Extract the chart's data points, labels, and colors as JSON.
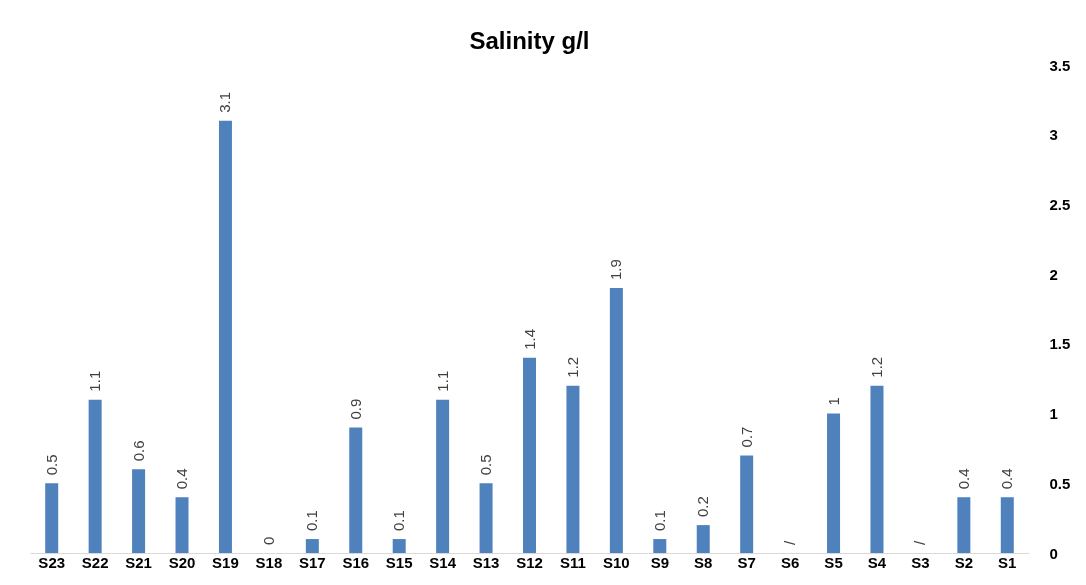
{
  "chart_data": {
    "type": "bar",
    "title": "Salinity g/l",
    "categories": [
      "S23",
      "S22",
      "S21",
      "S20",
      "S19",
      "S18",
      "S17",
      "S16",
      "S15",
      "S14",
      "S13",
      "S12",
      "S11",
      "S10",
      "S9",
      "S8",
      "S7",
      "S6",
      "S5",
      "S4",
      "S3",
      "S2",
      "S1"
    ],
    "values": [
      0.5,
      1.1,
      0.6,
      0.4,
      3.1,
      0,
      0.1,
      0.9,
      0.1,
      1.1,
      0.5,
      1.4,
      1.2,
      1.9,
      0.1,
      0.2,
      0.7,
      null,
      1,
      1.2,
      null,
      0.4,
      0.4
    ],
    "value_labels": [
      "0.5",
      "1.1",
      "0.6",
      "0.4",
      "3.1",
      "0",
      "0.1",
      "0.9",
      "0.1",
      "1.1",
      "0.5",
      "1.4",
      "1.2",
      "1.9",
      "0.1",
      "0.2",
      "0.7",
      "/",
      "1",
      "1.2",
      "/",
      "0.4",
      "0.4"
    ],
    "color": "#4f81bd",
    "ylim": [
      0,
      3.5
    ],
    "yticks": [
      0,
      0.5,
      1,
      1.5,
      2,
      2.5,
      3,
      3.5
    ],
    "grid": false
  }
}
